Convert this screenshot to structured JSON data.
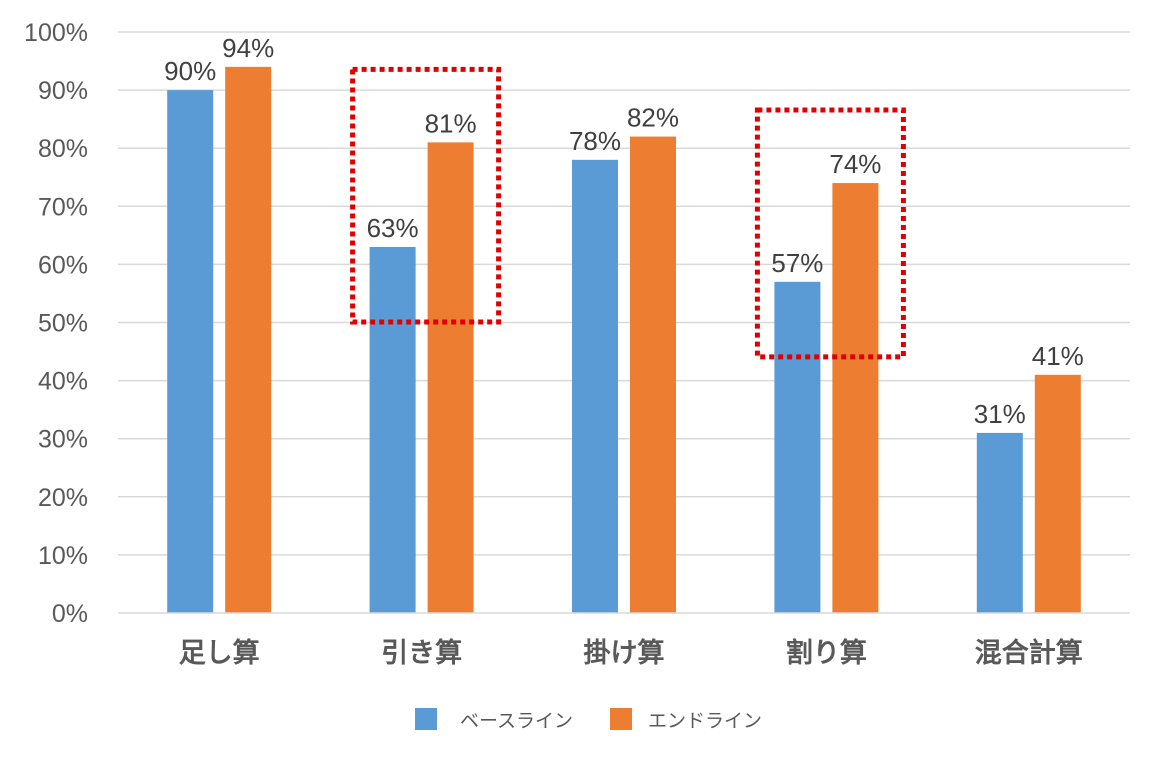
{
  "chart_data": {
    "type": "bar",
    "title": "",
    "xlabel": "",
    "ylabel": "",
    "ylim": [
      0,
      100
    ],
    "y_ticks": [
      "0%",
      "10%",
      "20%",
      "30%",
      "40%",
      "50%",
      "60%",
      "70%",
      "80%",
      "90%",
      "100%"
    ],
    "grid": true,
    "categories": [
      "足し算",
      "引き算",
      "掛け算",
      "割り算",
      "混合計算"
    ],
    "series": [
      {
        "name": "ベースライン",
        "values": [
          90,
          63,
          78,
          57,
          31
        ],
        "labels": [
          "90%",
          "63%",
          "78%",
          "57%",
          "31%"
        ],
        "color": "#5B9BD5"
      },
      {
        "name": "エンドライン",
        "values": [
          94,
          81,
          82,
          74,
          41
        ],
        "labels": [
          "94%",
          "81%",
          "82%",
          "74%",
          "41%"
        ],
        "color": "#ED7D31"
      }
    ],
    "highlighted_categories": [
      "引き算",
      "割り算"
    ],
    "highlight_color": "#E00000",
    "legend_position": "bottom"
  }
}
